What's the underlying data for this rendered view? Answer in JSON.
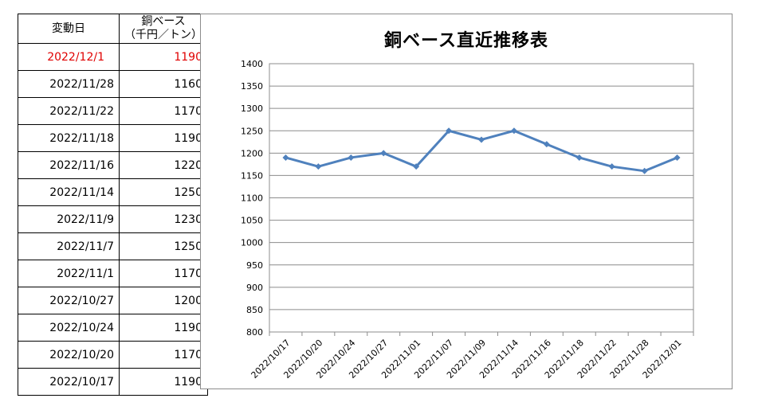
{
  "table": {
    "header": {
      "date": "変動日",
      "price_line1": "銅ベース",
      "price_line2": "（千円／トン）"
    },
    "rows": [
      {
        "date": "2022/12/1",
        "price": "1190",
        "highlight": true
      },
      {
        "date": "2022/11/28",
        "price": "1160",
        "highlight": false
      },
      {
        "date": "2022/11/22",
        "price": "1170",
        "highlight": false
      },
      {
        "date": "2022/11/18",
        "price": "1190",
        "highlight": false
      },
      {
        "date": "2022/11/16",
        "price": "1220",
        "highlight": false
      },
      {
        "date": "2022/11/14",
        "price": "1250",
        "highlight": false
      },
      {
        "date": "2022/11/9",
        "price": "1230",
        "highlight": false
      },
      {
        "date": "2022/11/7",
        "price": "1250",
        "highlight": false
      },
      {
        "date": "2022/11/1",
        "price": "1170",
        "highlight": false
      },
      {
        "date": "2022/10/27",
        "price": "1200",
        "highlight": false
      },
      {
        "date": "2022/10/24",
        "price": "1190",
        "highlight": false
      },
      {
        "date": "2022/10/20",
        "price": "1170",
        "highlight": false
      },
      {
        "date": "2022/10/17",
        "price": "1190",
        "highlight": false
      }
    ],
    "highlight_color": "#e00000"
  },
  "chart_data": {
    "type": "line",
    "title": "銅ベース直近推移表",
    "xlabel": "",
    "ylabel": "",
    "categories": [
      "2022/10/17",
      "2022/10/20",
      "2022/10/24",
      "2022/10/27",
      "2022/11/01",
      "2022/11/07",
      "2022/11/09",
      "2022/11/14",
      "2022/11/16",
      "2022/11/18",
      "2022/11/22",
      "2022/11/28",
      "2022/12/01"
    ],
    "series": [
      {
        "values": [
          1190,
          1170,
          1190,
          1200,
          1170,
          1250,
          1230,
          1250,
          1220,
          1190,
          1170,
          1160,
          1190
        ],
        "color": "#4f81bd",
        "marker": "diamond"
      }
    ],
    "ylim": [
      800,
      1400
    ],
    "yticks": [
      800,
      850,
      900,
      950,
      1000,
      1050,
      1100,
      1150,
      1200,
      1250,
      1300,
      1350,
      1400
    ],
    "grid": true,
    "legend": "none"
  }
}
